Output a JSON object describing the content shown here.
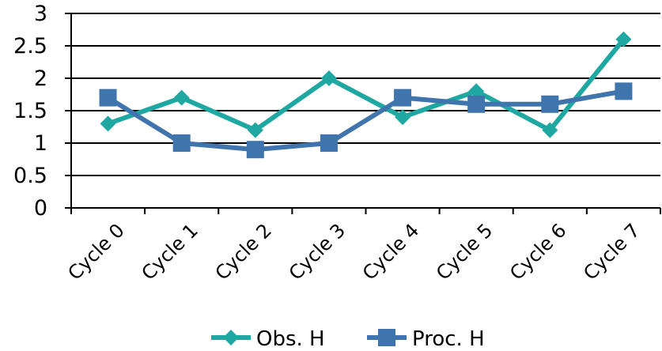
{
  "chart_data": {
    "type": "line",
    "categories": [
      "Cycle 0",
      "Cycle 1",
      "Cycle 2",
      "Cycle 3",
      "Cycle 4",
      "Cycle 5",
      "Cycle 6",
      "Cycle 7"
    ],
    "series": [
      {
        "name": "Obs. H",
        "values": [
          1.3,
          1.7,
          1.2,
          2.0,
          1.4,
          1.8,
          1.2,
          2.6
        ],
        "color": "#1fa8a2",
        "marker": "diamond"
      },
      {
        "name": "Proc. H",
        "values": [
          1.7,
          1.0,
          0.9,
          1.0,
          1.7,
          1.6,
          1.6,
          1.8
        ],
        "color": "#3f74ad",
        "marker": "square"
      }
    ],
    "ylim": [
      0,
      3
    ],
    "yticks": [
      "0",
      "0.5",
      "1",
      "1.5",
      "2",
      "2.5",
      "3"
    ],
    "grid": true,
    "legend_position": "bottom"
  }
}
